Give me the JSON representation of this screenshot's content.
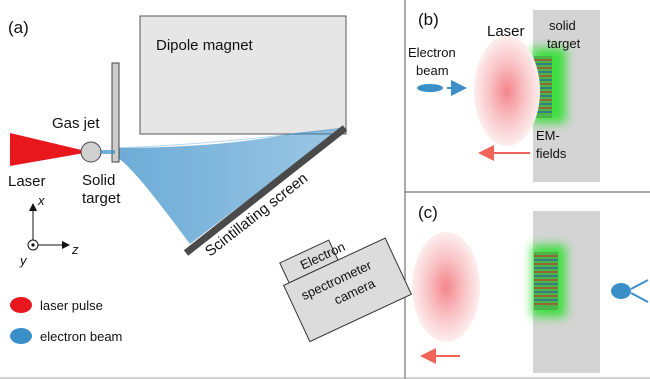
{
  "panel_a": {
    "label": "(a)",
    "dipole_magnet": "Dipole magnet",
    "gas_jet": "Gas jet",
    "laser": "Laser",
    "solid_target_line1": "Solid",
    "solid_target_line2": "target",
    "screen": "Scintillating screen",
    "camera_line1": "Electron",
    "camera_line2": "spectrometer",
    "camera_line3": "camera",
    "axis_x": "x",
    "axis_y": "y",
    "axis_z": "z",
    "legend": [
      {
        "label": "laser pulse",
        "color": "#e8161d"
      },
      {
        "label": "electron beam",
        "color": "#3a8fc9"
      }
    ]
  },
  "panel_b": {
    "label": "(b)",
    "laser": "Laser",
    "electron_beam_line1": "Electron",
    "electron_beam_line2": "beam",
    "solid_target_line1": "solid",
    "solid_target_line2": "target",
    "em_fields_line1": "EM-",
    "em_fields_line2": "fields"
  },
  "panel_c": {
    "label": "(c)"
  },
  "colors": {
    "laser": "#e8161d",
    "electron": "#3a8fc9",
    "arrow_red": "#f0645a",
    "magnet_fill": "#e6e6e6",
    "target_gray": "#d4d4d4",
    "field_green": "#2ee02e",
    "screen_dark": "#4a4a4a"
  }
}
